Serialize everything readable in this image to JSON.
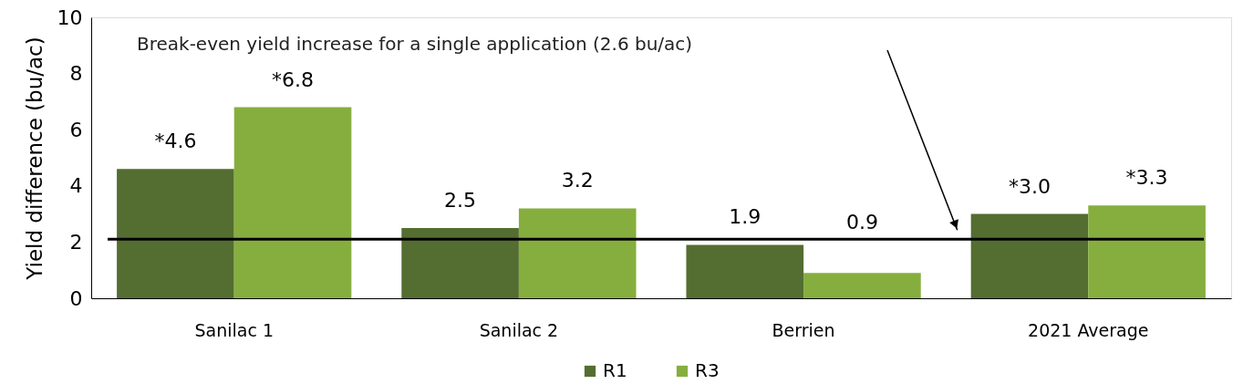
{
  "chart_data": {
    "type": "bar",
    "categories": [
      "Sanilac 1",
      "Sanilac 2",
      "Berrien",
      "2021 Average"
    ],
    "series": [
      {
        "name": "R1",
        "color": "#546d31",
        "values": [
          4.6,
          2.5,
          1.9,
          3.0
        ],
        "value_labels": [
          "*4.6",
          "2.5",
          "1.9",
          "*3.0"
        ]
      },
      {
        "name": "R3",
        "color": "#86ae3e",
        "values": [
          6.8,
          3.2,
          0.9,
          3.3
        ],
        "value_labels": [
          "*6.8",
          "3.2",
          "0.9",
          "*3.3"
        ]
      }
    ],
    "ylabel": "Yield difference (bu/ac)",
    "ylim": [
      0,
      10
    ],
    "yticks": [
      0,
      2,
      4,
      6,
      8,
      10
    ],
    "grid": false,
    "legend": "bottom",
    "ref_lines": [
      {
        "axis": "y",
        "value": 2.1,
        "color": "#000000"
      }
    ],
    "annotations": [
      "Break-even yield increase for a single application (2.6 bu/ac)"
    ]
  }
}
